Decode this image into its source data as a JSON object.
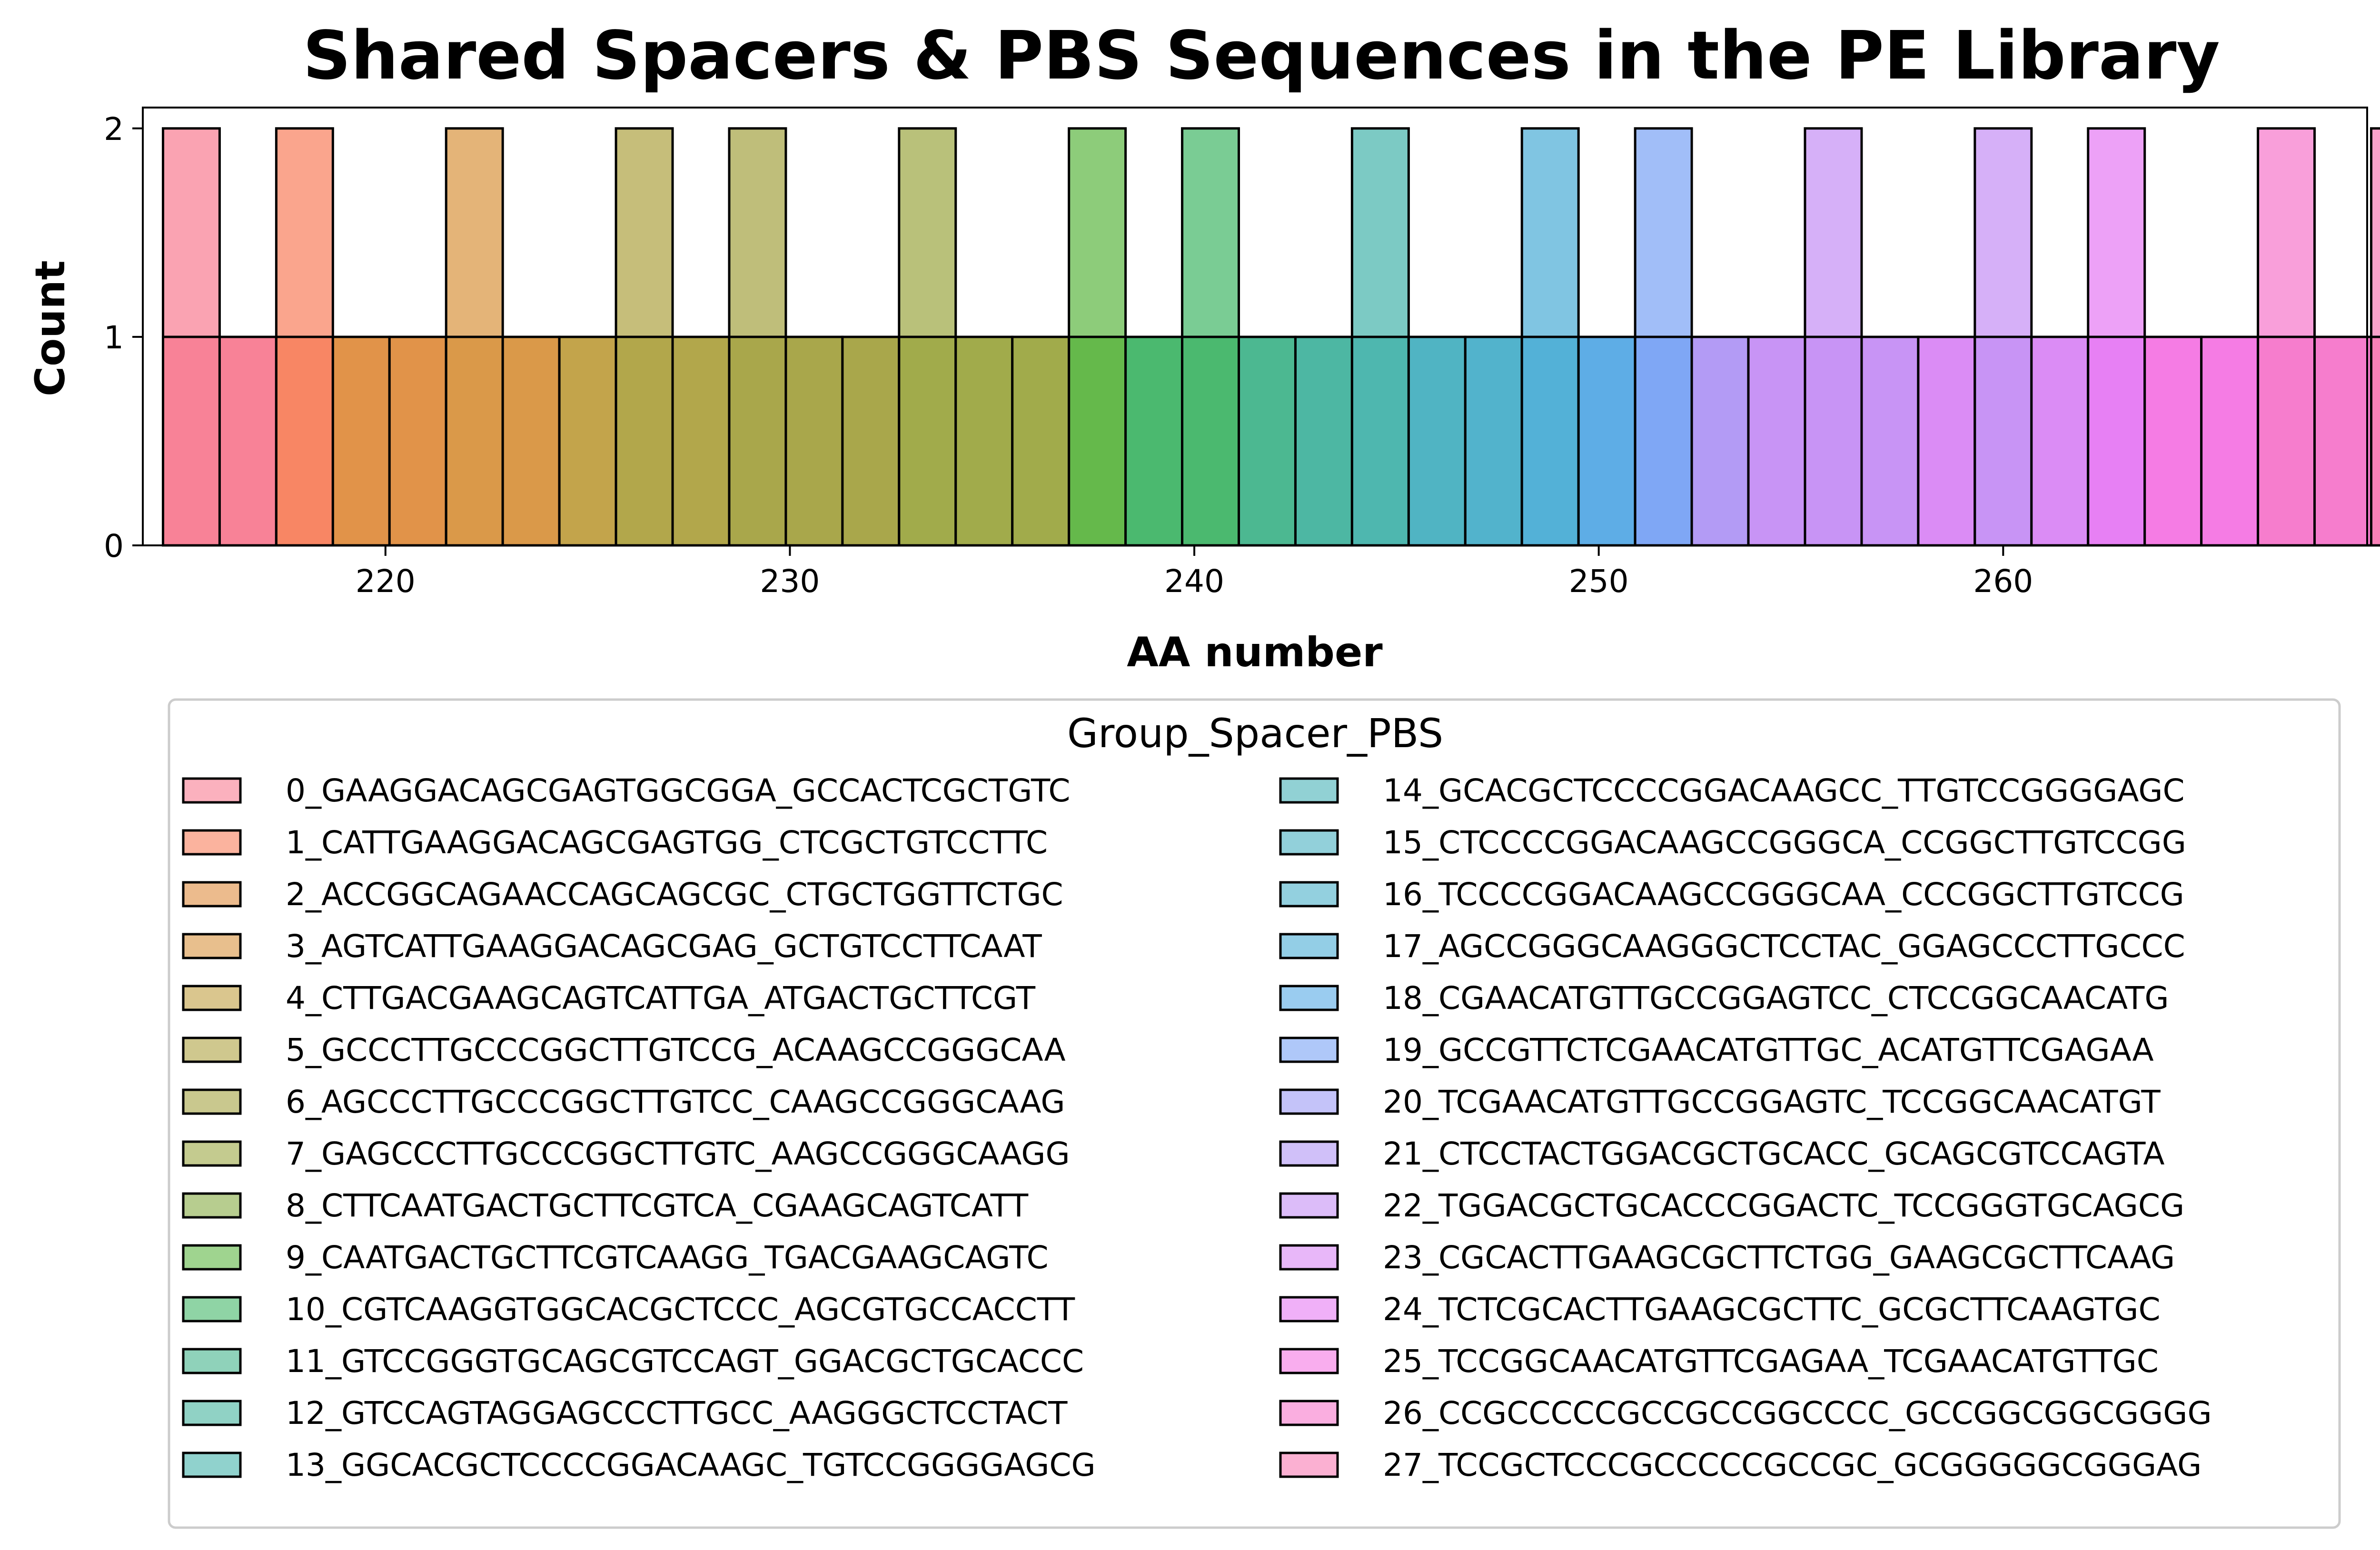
{
  "chart_data": {
    "type": "bar",
    "title": "Shared Spacers & PBS Sequences in the PE Library",
    "xlabel": "AA number",
    "ylabel": "Count",
    "xlim": [
      214,
      269
    ],
    "ylim": [
      0,
      2.1
    ],
    "xticks": [
      "220",
      "230",
      "240",
      "250",
      "260"
    ],
    "yticks": [
      "0",
      "1",
      "2"
    ],
    "grid": false,
    "legend_title": "Group_Spacer_PBS",
    "legend_placement": "below",
    "groups": [
      {
        "name": "0_GAAGGACAGCGAGTGGCGGA_GCCACTCGCTGTC",
        "color": "#f77189"
      },
      {
        "name": "1_CATTGAAGGACAGCGAGTGG_CTCGCTGTCCTTC",
        "color": "#f7754f"
      },
      {
        "name": "2_ACCGGCAGAACCAGCAGCGC_CTGCTGGTTCTGC",
        "color": "#dd8430"
      },
      {
        "name": "3_AGTCATTGAAGGACAGCGAG_GCTGTCCTTCAAT",
        "color": "#d58b30"
      },
      {
        "name": "4_CTTGACGAAGCAGTCATTGA_ATGACTGCTTCGT",
        "color": "#bb9832"
      },
      {
        "name": "5_GCCCTTGCCCGGCTTGTCCG_ACAAGCCGGGCAA",
        "color": "#a79b32"
      },
      {
        "name": "6_AGCCCTTGCCCGGCTTGTCC_CAAGCCGGGCAAG",
        "color": "#9d9b32"
      },
      {
        "name": "7_GAGCCCTTGCCCGGCTTGTC_AAGCCGGGCAAGG",
        "color": "#94a033"
      },
      {
        "name": "8_CTTCAATGACTGCTTCGTCA_CGAAGCAGTCATT",
        "color": "#7ca433"
      },
      {
        "name": "9_CAATGACTGCTTCGTCAAGG_TGACGAAGCAGTC",
        "color": "#50b033"
      },
      {
        "name": "10_CGTCAAGGTGGCACGCTCCC_AGCGTGCCACCTT",
        "color": "#33b05b"
      },
      {
        "name": "11_GTCCGGGTGCAGCGTCCAGT_GGACGCTGCACCC",
        "color": "#34ae82"
      },
      {
        "name": "12_GTCCAGTAGGAGCCCTTGCC_AAGGGCTCCTACT",
        "color": "#35ad96"
      },
      {
        "name": "13_GGCACGCTCCCCGGACAAGC_TGTCCGGGGAGCG",
        "color": "#36ada4"
      },
      {
        "name": "14_GCACGCTCCCCGGACAAGCC_TTGTCCGGGGAGC",
        "color": "#37abb0"
      },
      {
        "name": "15_CTCCCCGGACAAGCCGGGCA_CCGGCTTGTCCGG",
        "color": "#38aabb"
      },
      {
        "name": "16_TCCCCGGACAAGCCGGGCAA_CCCGGCTTGTCCG",
        "color": "#3aa9c5"
      },
      {
        "name": "17_AGCCGGGCAAGGGCTCCTAC_GGAGCCCTTGCCC",
        "color": "#3ba6d2"
      },
      {
        "name": "18_CGAACATGTTGCCGGAGTCC_CTCCGGCAACATG",
        "color": "#48a2e3"
      },
      {
        "name": "19_GCCGTTCTCGAACATGTTGC_ACATGTTCGAGAA",
        "color": "#6e9bf4"
      },
      {
        "name": "20_TCGAACATGTTGCCGGAGTC_TCCGGCAACATGT",
        "color": "#9491f4"
      },
      {
        "name": "21_CTCCTACTGGACGCTGCACC_GCAGCGTCCAGTA",
        "color": "#a98df4"
      },
      {
        "name": "22_TGGACGCTGCACCCGGACTC_TCCGGGTGCAGCG",
        "color": "#c085f4"
      },
      {
        "name": "23_CGCACTTGAAGCGCTTCTGG_GAAGCGCTTCAAG",
        "color": "#d67cf4"
      },
      {
        "name": "24_TCTCGCACTTGAAGCGCTTC_GCGCTTCAAGTGC",
        "color": "#e46ff2"
      },
      {
        "name": "25_TCCGGCAACATGTTCGAGAA_TCGAACATGTTGC",
        "color": "#f46ae0"
      },
      {
        "name": "26_CCGCCCCCGCCGCCGGCCCC_GCCGGCGGCGGGG",
        "color": "#f56bc6"
      },
      {
        "name": "27_TCCGCTCCCGCCCCCGCCGC_GCGGGGGCGGGAG",
        "color": "#f770ae"
      }
    ],
    "bars": [
      {
        "x": 214.5,
        "count": 1,
        "tall_count": 2,
        "group": 0
      },
      {
        "x": 215.9,
        "count": 1,
        "tall_count": null,
        "group": 0
      },
      {
        "x": 217.3,
        "count": 1,
        "tall_count": 2,
        "group": 1
      },
      {
        "x": 218.7,
        "count": 1,
        "tall_count": null,
        "group": 2
      },
      {
        "x": 220.1,
        "count": 1,
        "tall_count": null,
        "group": 2
      },
      {
        "x": 221.5,
        "count": 1,
        "tall_count": 2,
        "group": 3
      },
      {
        "x": 222.9,
        "count": 1,
        "tall_count": null,
        "group": 3
      },
      {
        "x": 224.3,
        "count": 1,
        "tall_count": null,
        "group": 4
      },
      {
        "x": 225.7,
        "count": 1,
        "tall_count": 2,
        "group": 5
      },
      {
        "x": 227.1,
        "count": 1,
        "tall_count": null,
        "group": 5
      },
      {
        "x": 228.5,
        "count": 1,
        "tall_count": 2,
        "group": 6
      },
      {
        "x": 229.9,
        "count": 1,
        "tall_count": null,
        "group": 6
      },
      {
        "x": 231.3,
        "count": 1,
        "tall_count": null,
        "group": 6
      },
      {
        "x": 232.7,
        "count": 1,
        "tall_count": 2,
        "group": 7
      },
      {
        "x": 234.1,
        "count": 1,
        "tall_count": null,
        "group": 7
      },
      {
        "x": 235.5,
        "count": 1,
        "tall_count": null,
        "group": 7
      },
      {
        "x": 236.9,
        "count": 1,
        "tall_count": 2,
        "group": 9
      },
      {
        "x": 238.3,
        "count": 1,
        "tall_count": null,
        "group": 10
      },
      {
        "x": 239.7,
        "count": 1,
        "tall_count": 2,
        "group": 10
      },
      {
        "x": 241.1,
        "count": 1,
        "tall_count": null,
        "group": 11
      },
      {
        "x": 242.5,
        "count": 1,
        "tall_count": null,
        "group": 12
      },
      {
        "x": 243.9,
        "count": 1,
        "tall_count": 2,
        "group": 13
      },
      {
        "x": 245.3,
        "count": 1,
        "tall_count": null,
        "group": 15
      },
      {
        "x": 246.7,
        "count": 1,
        "tall_count": null,
        "group": 16
      },
      {
        "x": 248.1,
        "count": 1,
        "tall_count": 2,
        "group": 17
      },
      {
        "x": 249.5,
        "count": 1,
        "tall_count": null,
        "group": 18
      },
      {
        "x": 250.9,
        "count": 1,
        "tall_count": 2,
        "group": 19
      },
      {
        "x": 252.3,
        "count": 1,
        "tall_count": null,
        "group": 21
      },
      {
        "x": 253.7,
        "count": 1,
        "tall_count": null,
        "group": 22
      },
      {
        "x": 255.1,
        "count": 1,
        "tall_count": 2,
        "group": 22
      },
      {
        "x": 256.5,
        "count": 1,
        "tall_count": null,
        "group": 22
      },
      {
        "x": 257.9,
        "count": 1,
        "tall_count": null,
        "group": 23
      },
      {
        "x": 259.3,
        "count": 1,
        "tall_count": 2,
        "group": 22
      },
      {
        "x": 260.7,
        "count": 1,
        "tall_count": null,
        "group": 23
      },
      {
        "x": 262.1,
        "count": 1,
        "tall_count": 2,
        "group": 24
      },
      {
        "x": 263.5,
        "count": 1,
        "tall_count": null,
        "group": 25
      },
      {
        "x": 264.9,
        "count": 1,
        "tall_count": null,
        "group": 25
      },
      {
        "x": 266.3,
        "count": 1,
        "tall_count": 2,
        "group": 26
      },
      {
        "x": 267.7,
        "count": 1,
        "tall_count": null,
        "group": 26
      },
      {
        "x": 269.1,
        "count": 1,
        "tall_count": 2,
        "group": 27
      }
    ]
  }
}
